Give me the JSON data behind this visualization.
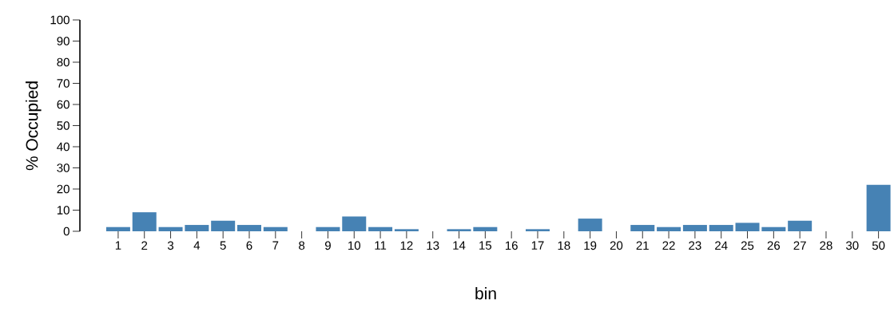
{
  "chart_data": {
    "type": "bar",
    "xlabel": "bin",
    "ylabel": "% Occupied",
    "categories": [
      "1",
      "2",
      "3",
      "4",
      "5",
      "6",
      "7",
      "8",
      "9",
      "10",
      "11",
      "12",
      "13",
      "14",
      "15",
      "16",
      "17",
      "18",
      "19",
      "20",
      "21",
      "22",
      "23",
      "24",
      "25",
      "26",
      "27",
      "28",
      "30",
      "50"
    ],
    "values": [
      2,
      9,
      2,
      3,
      5,
      3,
      2,
      0,
      2,
      7,
      2,
      1,
      0,
      1,
      2,
      0,
      1,
      0,
      6,
      0,
      3,
      2,
      3,
      3,
      4,
      2,
      5,
      0,
      0,
      22
    ],
    "color": "#4682b4",
    "ylim": [
      0,
      100
    ],
    "yticks": [
      0,
      10,
      20,
      30,
      40,
      50,
      60,
      70,
      80,
      90,
      100
    ]
  }
}
